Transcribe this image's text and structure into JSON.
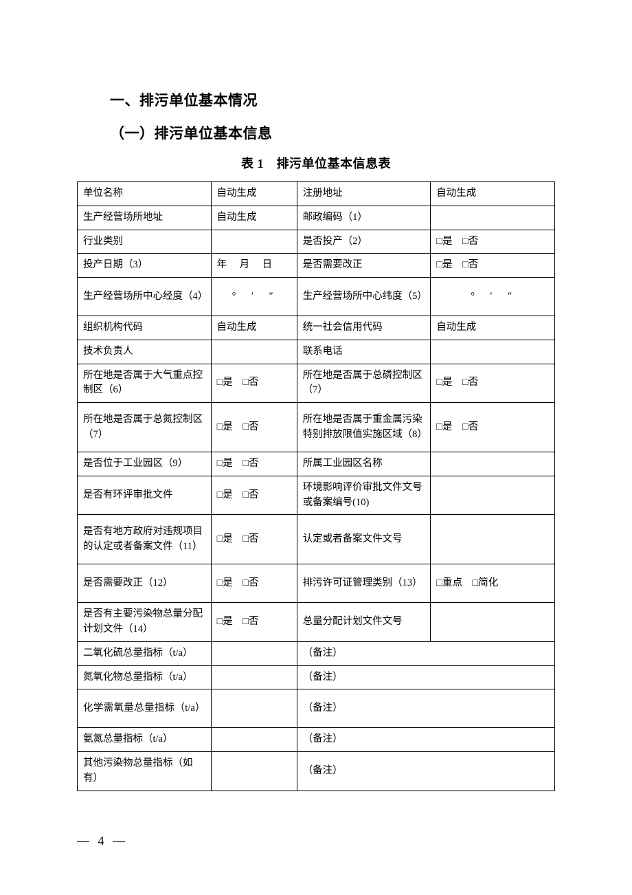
{
  "headings": {
    "h1": "一、排污单位基本情况",
    "h2": "（一）排污单位基本信息",
    "caption": "表 1　排污单位基本信息表"
  },
  "labels": {
    "yes": "□是",
    "no": "□否",
    "zhongdian": "□重点",
    "jianhua": "□简化",
    "autogen": "自动生成",
    "remark": "（备注）",
    "date": "年　月　日",
    "dms": "°　′　″"
  },
  "rows": [
    {
      "a": "单位名称",
      "b": "自动生成",
      "c": "注册地址",
      "d": "自动生成"
    },
    {
      "a": "生产经营场所地址",
      "b": "自动生成",
      "c": "邮政编码（1）",
      "d": ""
    },
    {
      "a": "行业类别",
      "b": "",
      "c": "是否投产（2）",
      "d": "yesno"
    },
    {
      "a": "投产日期（3）",
      "b": "date",
      "c": "是否需要改正",
      "d": "yesno"
    },
    {
      "a": "生产经营场所中心经度（4）",
      "b": "dms",
      "c": "生产经营场所中心纬度（5）",
      "d": "dms",
      "tall": true
    },
    {
      "a": "组织机构代码",
      "b": "自动生成",
      "c": "统一社会信用代码",
      "d": "自动生成"
    },
    {
      "a": "技术负责人",
      "b": "",
      "c": "联系电话",
      "d": ""
    },
    {
      "a": "所在地是否属于大气重点控制区（6）",
      "b": "yesno",
      "c": "所在地是否属于总磷控制区（7）",
      "d": "yesno",
      "tall": true
    },
    {
      "a": "所在地是否属于总氮控制区（7）",
      "b": "yesno",
      "c": "所在地是否属于重金属污染特别排放限值实施区域（8）",
      "d": "yesno",
      "taller": true
    },
    {
      "a": "是否位于工业园区（9）",
      "b": "yesno",
      "c": "所属工业园区名称",
      "d": ""
    },
    {
      "a": "是否有环评审批文件",
      "b": "yesno",
      "c": "环境影响评价审批文件文号或备案编号(10)",
      "d": "",
      "tall": true
    },
    {
      "a": "是否有地方政府对违规项目的认定或者备案文件（11）",
      "b": "yesno",
      "c": "认定或者备案文件文号",
      "d": "",
      "taller": true
    },
    {
      "a": "是否需要改正（12）",
      "b": "yesno",
      "c": "排污许可证管理类别（13）",
      "d": "zdjh",
      "tall": true
    },
    {
      "a": "是否有主要污染物总量分配计划文件（14）",
      "b": "yesno",
      "c": "总量分配计划文件文号",
      "d": "",
      "tall": true
    },
    {
      "a": "二氧化硫总量指标（t/a）",
      "b": "",
      "c": "（备注）",
      "merge": true
    },
    {
      "a": "氮氧化物总量指标（t/a）",
      "b": "",
      "c": "（备注）",
      "merge": true
    },
    {
      "a": "化学需氧量总量指标（t/a）",
      "b": "",
      "c": "（备注）",
      "merge": true,
      "tall": true,
      "spread": true
    },
    {
      "a": "氨氮总量指标（t/a）",
      "b": "",
      "c": "（备注）",
      "merge": true
    },
    {
      "a": "其他污染物总量指标（如有）",
      "b": "",
      "c": "（备注）",
      "merge": true
    }
  ],
  "page_number": "— 4 —"
}
